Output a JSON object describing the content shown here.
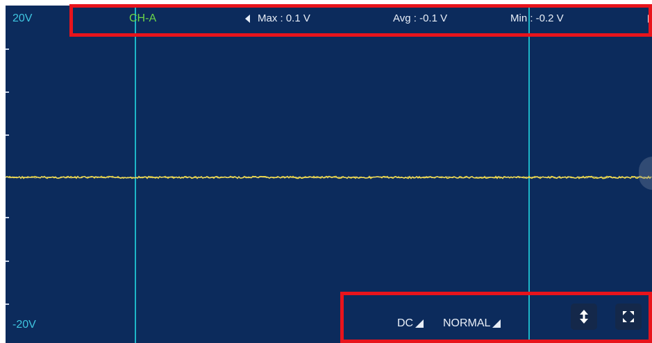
{
  "scale": {
    "max_label": "20V",
    "min_label": "-20V"
  },
  "channel": {
    "name": "CH-A",
    "color": "#6bd64a"
  },
  "measurements": {
    "max": "Max : 0.1 V",
    "avg": "Avg : -0.1 V",
    "min": "Min : -0.2 V"
  },
  "controls": {
    "coupling": "DC",
    "trigger_mode": "NORMAL",
    "vertical_icon": "vertical-arrows-icon",
    "fullscreen_icon": "fullscreen-icon"
  },
  "colors": {
    "background": "#0c2b5c",
    "cursor": "#1db6c8",
    "trace": "#e7d13a",
    "highlight_box": "#e8141c"
  }
}
